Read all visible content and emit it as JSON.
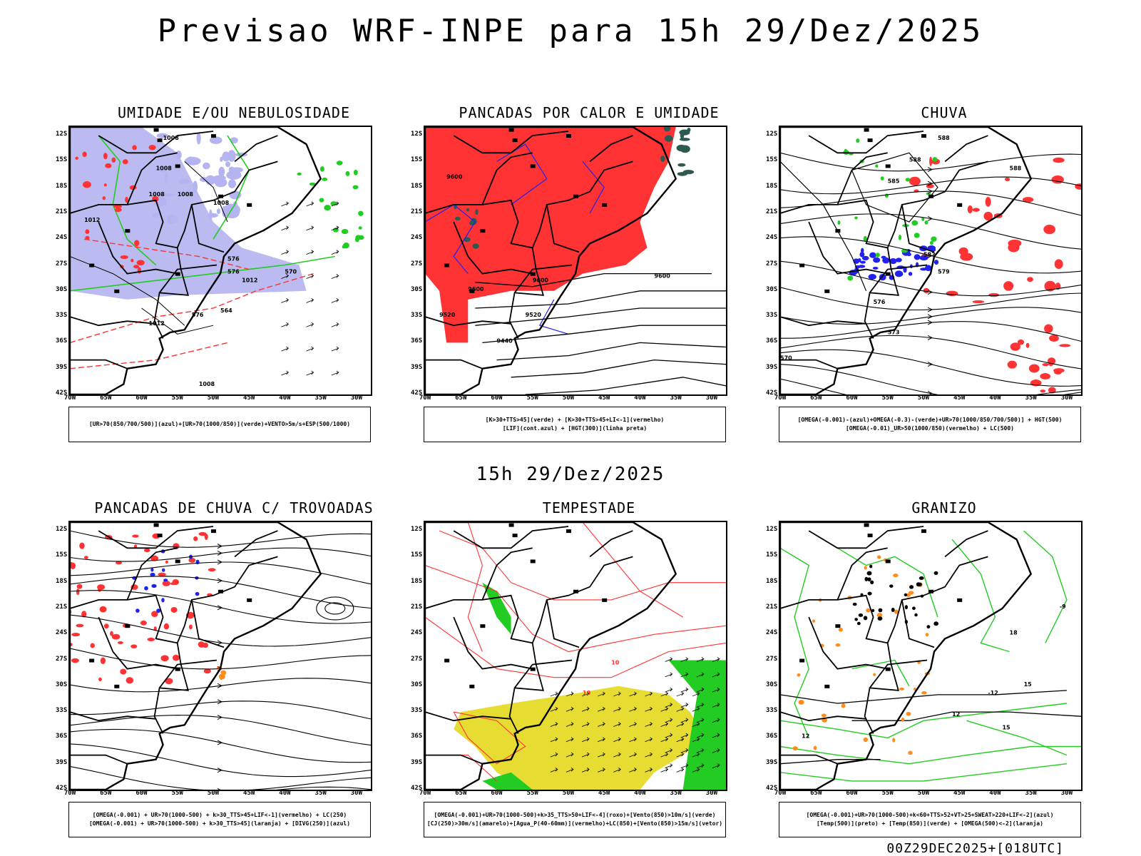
{
  "title": "Previsao WRF-INPE  para 15h 29/Dez/2025",
  "mid_time": "15h 29/Dez/2025",
  "footer": "00Z29DEC2025+[018UTC]",
  "axes": {
    "lat_labels": [
      "12S",
      "15S",
      "18S",
      "21S",
      "24S",
      "27S",
      "30S",
      "33S",
      "36S",
      "39S",
      "42S"
    ],
    "lon_labels": [
      "70W",
      "65W",
      "60W",
      "55W",
      "50W",
      "45W",
      "40W",
      "35W",
      "30W"
    ]
  },
  "colors": {
    "red": "#ff3333",
    "blue": "#2222ee",
    "green": "#22cc22",
    "lavender": "#b4b4f0",
    "yellow": "#e6dc32",
    "orange": "#ff8c1e",
    "darkteal": "#2d5a50"
  },
  "panels": [
    {
      "id": "umidade",
      "title": "UMIDADE E/OU NEBULOSIDADE",
      "legend": [
        "[UR>70(850/700/500)](azul)+[UR>70(1000/850)](verde)+VENTO>5m/s+ESP(500/1000)"
      ],
      "contour_labels": [
        "1008",
        "1008",
        "1008",
        "1008",
        "1008",
        "1012",
        "1012",
        "1012",
        "576",
        "576",
        "576",
        "570",
        "564",
        "1008"
      ]
    },
    {
      "id": "pancadas-calor",
      "title": "PANCADAS POR CALOR E UMIDADE",
      "legend": [
        "[K>30+TTS>45](verde) + [K>30+TTS>45+LI<-1](vermelho)",
        "[LIF](cont.azul) + [HGT(300)](linha preta)"
      ],
      "contour_labels": [
        "9600",
        "9600",
        "9600",
        "9520",
        "9520",
        "9440",
        "9600"
      ]
    },
    {
      "id": "chuva",
      "title": "CHUVA",
      "legend": [
        "[OMEGA(-0.001)-(azul)+OMEGA(-0.3)-(verde)+UR>70(1000/850/700/500)] + HGT(500)",
        "[OMEGA(-0.01)_UR>50(1000/850)(vermelho) + LC(500)"
      ],
      "contour_labels": [
        "588",
        "588",
        "585",
        "582",
        "579",
        "576",
        "573",
        "570",
        "588"
      ]
    },
    {
      "id": "trovoadas",
      "title": "PANCADAS DE CHUVA C/ TROVOADAS",
      "legend": [
        "[OMEGA(-0.001) + UR>70(1000-500) + k>30_TTS>45+LIF<-1](vermelho) + LC(250)",
        "[OMEGA(-0.001) + UR>70(1000-500) + k>30_TTS>45](laranja) + [DIVG(250)](azul)"
      ],
      "contour_labels": []
    },
    {
      "id": "tempestade",
      "title": "TEMPESTADE",
      "legend": [
        "[OMEGA(-0.001)+UR>70(1000-500)+k>35_TTS>50+LIF<-4](roxo)+[Vento(850)>10m/s](verde)",
        "[CJ(250)>30m/s](amarelo)+[Agua_P(40-60mm)](vermelho)+LC(850)+[Vento(850)>15m/s](vetor)"
      ],
      "contour_labels": [
        "10",
        "10"
      ]
    },
    {
      "id": "granizo",
      "title": "GRANIZO",
      "legend": [
        "[OMEGA(-0.001)+UR>70(1000-500)+k<60+TTS>52+VT>25+SWEAT>220+LIF<-2](azul)",
        "[Temp(500)](preto) + [Temp(850)](verde) + [OMEGA(500)<-2](laranja)"
      ],
      "contour_labels": [
        "-9",
        "-12",
        "18",
        "15",
        "12",
        "15",
        "12"
      ]
    }
  ]
}
